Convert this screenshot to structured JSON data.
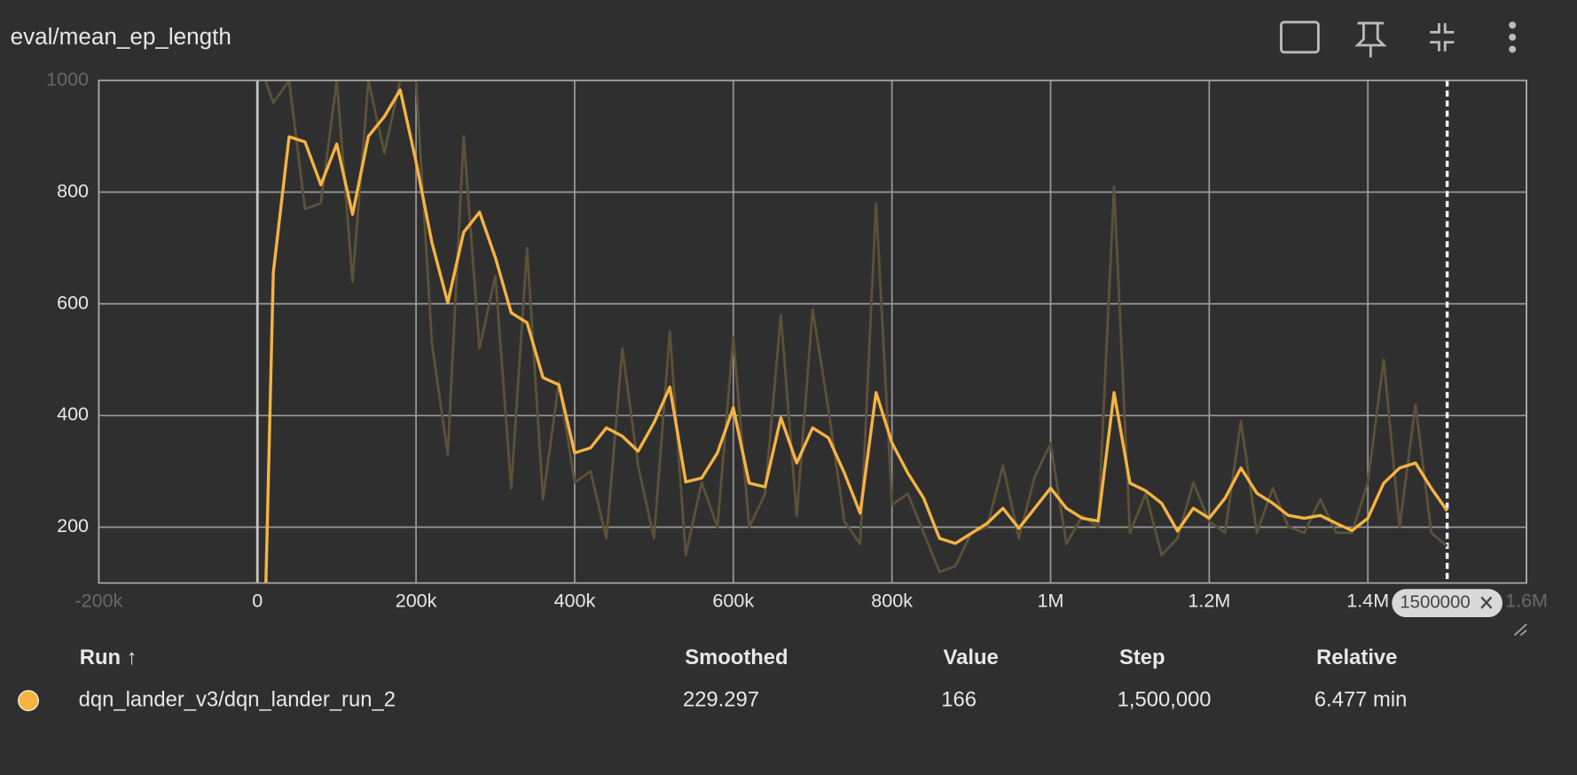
{
  "header": {
    "title": "eval/mean_ep_length"
  },
  "chart_data": {
    "type": "line",
    "x": [
      10000,
      20000,
      40000,
      60000,
      80000,
      100000,
      120000,
      140000,
      160000,
      180000,
      200000,
      220000,
      240000,
      260000,
      280000,
      300000,
      320000,
      340000,
      360000,
      380000,
      400000,
      420000,
      440000,
      460000,
      480000,
      500000,
      520000,
      540000,
      560000,
      580000,
      600000,
      620000,
      640000,
      660000,
      680000,
      700000,
      720000,
      740000,
      760000,
      780000,
      800000,
      820000,
      840000,
      860000,
      880000,
      900000,
      920000,
      940000,
      960000,
      980000,
      1000000,
      1020000,
      1040000,
      1060000,
      1080000,
      1100000,
      1120000,
      1140000,
      1160000,
      1180000,
      1200000,
      1220000,
      1240000,
      1260000,
      1280000,
      1300000,
      1320000,
      1340000,
      1360000,
      1380000,
      1400000,
      1420000,
      1440000,
      1460000,
      1480000,
      1500000
    ],
    "series": [
      {
        "name": "raw",
        "color": "#5c5138",
        "values": [
          1000,
          960,
          1000,
          770,
          780,
          1000,
          640,
          1000,
          870,
          1000,
          1000,
          530,
          330,
          900,
          520,
          650,
          270,
          700,
          250,
          460,
          280,
          300,
          180,
          520,
          310,
          180,
          550,
          150,
          280,
          200,
          540,
          200,
          260,
          580,
          220,
          590,
          410,
          210,
          170,
          780,
          240,
          260,
          190,
          120,
          130,
          190,
          200,
          310,
          180,
          290,
          350,
          170,
          220,
          200,
          810,
          190,
          260,
          150,
          180,
          280,
          210,
          190,
          390,
          190,
          270,
          200,
          190,
          250,
          190,
          190,
          280,
          500,
          200,
          420,
          190,
          166
        ]
      },
      {
        "name": "smoothed",
        "color": "#f5b342",
        "values": [
          60,
          656,
          899,
          890,
          813,
          886,
          760,
          900,
          935,
          983,
          854,
          710,
          602,
          728,
          764,
          683,
          584,
          566,
          468,
          455,
          333,
          342,
          378,
          363,
          336,
          387,
          451,
          281,
          288,
          333,
          414,
          279,
          272,
          396,
          315,
          378,
          360,
          297,
          225,
          441,
          351,
          297,
          252,
          180,
          171,
          189,
          207,
          234,
          198,
          234,
          270,
          234,
          216,
          211,
          441,
          279,
          265,
          243,
          193,
          234,
          216,
          252,
          306,
          261,
          243,
          221,
          216,
          221,
          207,
          194,
          216,
          279,
          306,
          315,
          270,
          229.297
        ]
      }
    ],
    "xlim": [
      -200000,
      1600000
    ],
    "ylim": [
      100,
      1000
    ],
    "xticks": [
      {
        "value": -200000,
        "label": "-200k"
      },
      0,
      {
        "value": 200000,
        "label": "200k"
      },
      {
        "value": 400000,
        "label": "400k"
      },
      {
        "value": 600000,
        "label": "600k"
      },
      {
        "value": 800000,
        "label": "800k"
      },
      {
        "value": 1000000,
        "label": "1M"
      },
      {
        "value": 1200000,
        "label": "1.2M"
      },
      {
        "value": 1400000,
        "label": "1.4M"
      },
      {
        "value": 1600000,
        "label": "1.6M"
      }
    ],
    "yticks": [
      200,
      400,
      600,
      800,
      1000
    ],
    "grid": true,
    "cursor_step": 1500000
  },
  "table": {
    "columns": [
      "Run ↑",
      "Smoothed",
      "Value",
      "Step",
      "Relative"
    ],
    "rows": [
      [
        "dqn_lander_v3/dqn_lander_run_2",
        "229.297",
        "166",
        "1,500,000",
        "6.477 min"
      ]
    ]
  }
}
